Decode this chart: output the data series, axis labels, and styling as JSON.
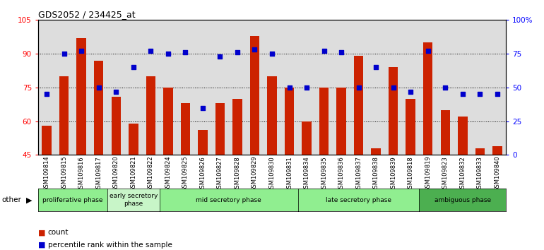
{
  "title": "GDS2052 / 234425_at",
  "samples": [
    "GSM109814",
    "GSM109815",
    "GSM109816",
    "GSM109817",
    "GSM109820",
    "GSM109821",
    "GSM109822",
    "GSM109824",
    "GSM109825",
    "GSM109826",
    "GSM109827",
    "GSM109828",
    "GSM109829",
    "GSM109830",
    "GSM109831",
    "GSM109834",
    "GSM109835",
    "GSM109836",
    "GSM109837",
    "GSM109838",
    "GSM109839",
    "GSM109818",
    "GSM109819",
    "GSM109823",
    "GSM109832",
    "GSM109833",
    "GSM109840"
  ],
  "counts": [
    58,
    80,
    97,
    87,
    71,
    59,
    80,
    75,
    68,
    56,
    68,
    70,
    98,
    80,
    75,
    60,
    75,
    75,
    89,
    48,
    84,
    70,
    95,
    65,
    62,
    48,
    49
  ],
  "percentiles": [
    45,
    75,
    77,
    50,
    47,
    65,
    77,
    75,
    76,
    35,
    73,
    76,
    78,
    75,
    50,
    50,
    77,
    76,
    50,
    65,
    50,
    47,
    77,
    50,
    45,
    45,
    45
  ],
  "phases": [
    {
      "label": "proliferative phase",
      "start": 0,
      "end": 4,
      "color": "#90EE90"
    },
    {
      "label": "early secretory\nphase",
      "start": 4,
      "end": 7,
      "color": "#c8f5c8"
    },
    {
      "label": "mid secretory phase",
      "start": 7,
      "end": 15,
      "color": "#90EE90"
    },
    {
      "label": "late secretory phase",
      "start": 15,
      "end": 22,
      "color": "#90EE90"
    },
    {
      "label": "ambiguous phase",
      "start": 22,
      "end": 27,
      "color": "#4CAF50"
    }
  ],
  "ylim_left": [
    45,
    105
  ],
  "ylim_right": [
    0,
    100
  ],
  "bar_color": "#CC2200",
  "dot_color": "#0000CC",
  "plot_bg_color": "#DDDDDD",
  "grid_color": "#000000",
  "yticks_left": [
    45,
    60,
    75,
    90,
    105
  ],
  "yticks_right": [
    0,
    25,
    50,
    75,
    100
  ],
  "ytick_labels_right": [
    "0",
    "25",
    "50",
    "75",
    "100%"
  ]
}
